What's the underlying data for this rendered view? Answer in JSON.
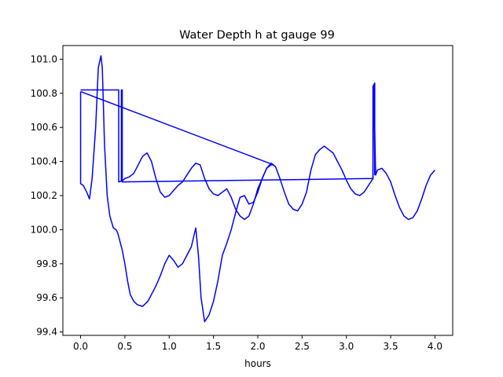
{
  "chart_data": {
    "type": "line",
    "title": "Water Depth h at gauge 99",
    "xlabel": "hours",
    "ylabel": "",
    "xlim": [
      -0.2,
      4.2
    ],
    "ylim": [
      99.38,
      101.08
    ],
    "xticks": [
      0.0,
      0.5,
      1.0,
      1.5,
      2.0,
      2.5,
      3.0,
      3.5,
      4.0
    ],
    "xtick_labels": [
      "0.0",
      "0.5",
      "1.0",
      "1.5",
      "2.0",
      "2.5",
      "3.0",
      "3.5",
      "4.0"
    ],
    "yticks": [
      99.4,
      99.6,
      99.8,
      100.0,
      100.2,
      100.4,
      100.6,
      100.8,
      101.0
    ],
    "ytick_labels": [
      "99.4",
      "99.6",
      "99.8",
      "100.0",
      "100.2",
      "100.4",
      "100.6",
      "100.8",
      "101.0"
    ],
    "grid": false,
    "legend": "none",
    "series": [
      {
        "color": "#0000ff",
        "x": [
          0.0,
          0.0,
          0.03,
          0.07,
          0.1,
          0.13,
          0.17,
          0.2,
          0.23,
          0.245,
          0.27,
          0.3,
          0.33,
          0.37,
          0.4,
          0.42,
          0.45,
          0.47,
          0.5,
          0.53,
          0.56,
          0.6,
          0.64,
          0.7,
          0.76,
          0.8,
          0.85,
          0.9,
          0.95,
          1.0,
          1.05,
          1.1,
          1.15,
          1.2,
          1.25,
          1.3,
          1.33,
          1.36,
          1.4,
          1.45,
          1.5,
          1.55,
          1.6,
          1.65,
          1.7,
          1.75,
          1.8,
          1.85,
          1.9,
          1.95,
          2.0,
          2.05,
          2.1,
          2.15,
          2.18
        ],
        "y": [
          100.81,
          100.27,
          100.26,
          100.22,
          100.18,
          100.3,
          100.6,
          100.95,
          101.02,
          100.95,
          100.5,
          100.2,
          100.08,
          100.01,
          100.0,
          99.98,
          99.92,
          99.88,
          99.8,
          99.7,
          99.62,
          99.58,
          99.56,
          99.55,
          99.58,
          99.62,
          99.67,
          99.73,
          99.8,
          99.85,
          99.82,
          99.78,
          99.8,
          99.85,
          99.9,
          100.01,
          99.85,
          99.6,
          99.46,
          99.5,
          99.58,
          99.7,
          99.85,
          99.92,
          100.0,
          100.1,
          100.19,
          100.2,
          100.15,
          100.16,
          100.22,
          100.3,
          100.36,
          100.38,
          100.38
        ]
      },
      {
        "color": "#0000ff",
        "x": [
          0.0,
          0.43,
          0.43,
          0.48,
          0.5,
          0.55,
          0.6,
          0.65,
          0.7,
          0.75,
          0.8,
          0.85,
          0.9,
          0.95,
          1.0,
          1.05,
          1.1,
          1.15,
          1.2,
          1.25,
          1.3,
          1.35,
          1.4,
          1.45,
          1.5,
          1.55,
          1.6,
          1.65,
          1.7,
          1.75,
          1.8,
          1.85,
          1.9,
          1.95,
          2.0,
          2.05,
          2.1,
          2.15,
          2.2,
          2.25,
          2.3,
          2.35,
          2.4,
          2.45,
          2.5,
          2.55,
          2.6,
          2.65,
          2.7,
          2.75,
          2.8,
          2.85,
          2.9,
          2.95,
          3.0,
          3.05,
          3.1,
          3.15,
          3.2,
          3.25,
          3.3,
          3.31,
          3.33,
          3.35,
          3.4,
          3.45,
          3.5,
          3.55,
          3.6,
          3.65,
          3.7,
          3.75,
          3.8,
          3.85,
          3.9,
          3.95,
          4.0
        ],
        "y": [
          100.82,
          100.82,
          100.28,
          100.29,
          100.3,
          100.31,
          100.33,
          100.38,
          100.43,
          100.45,
          100.4,
          100.3,
          100.22,
          100.19,
          100.2,
          100.23,
          100.26,
          100.28,
          100.32,
          100.36,
          100.39,
          100.38,
          100.3,
          100.24,
          100.21,
          100.2,
          100.22,
          100.24,
          100.19,
          100.12,
          100.08,
          100.06,
          100.08,
          100.15,
          100.24,
          100.3,
          100.36,
          100.39,
          100.37,
          100.3,
          100.22,
          100.15,
          100.12,
          100.11,
          100.15,
          100.22,
          100.35,
          100.44,
          100.47,
          100.49,
          100.47,
          100.45,
          100.4,
          100.35,
          100.29,
          100.24,
          100.21,
          100.2,
          100.22,
          100.26,
          100.3,
          100.85,
          100.32,
          100.35,
          100.36,
          100.33,
          100.28,
          100.2,
          100.13,
          100.08,
          100.06,
          100.07,
          100.11,
          100.18,
          100.26,
          100.32,
          100.35
        ]
      },
      {
        "color": "#0000ff",
        "x": [
          0.0,
          2.18
        ],
        "y": [
          100.81,
          100.38
        ]
      },
      {
        "color": "#0000ff",
        "x": [
          0.46,
          0.46,
          0.47,
          0.47,
          3.3,
          3.3,
          3.32,
          3.32
        ],
        "y": [
          100.28,
          100.82,
          100.82,
          100.28,
          100.3,
          100.84,
          100.86,
          100.32
        ]
      }
    ]
  }
}
